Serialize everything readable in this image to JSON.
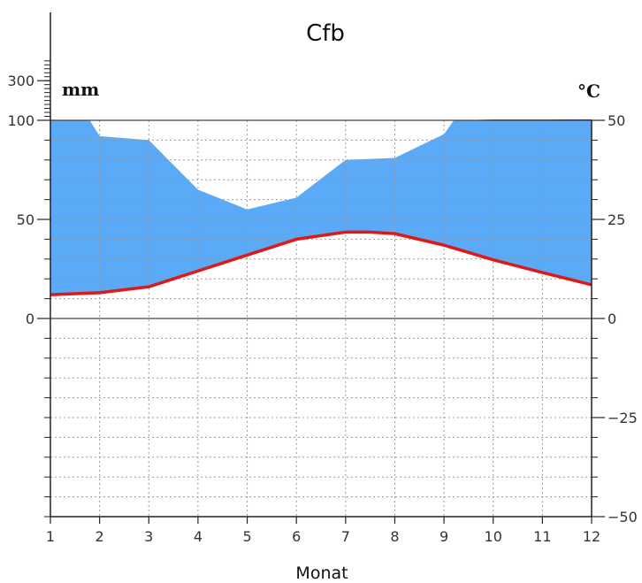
{
  "chart_data": {
    "type": "area",
    "title": "Cfb",
    "xlabel": "Monat",
    "left_unit": "mm",
    "right_unit": "°C",
    "x": [
      1,
      2,
      3,
      4,
      5,
      6,
      7,
      8,
      9,
      10,
      11,
      12
    ],
    "xtick_labels": [
      "1",
      "2",
      "3",
      "4",
      "5",
      "6",
      "7",
      "8",
      "9",
      "10",
      "11",
      "12"
    ],
    "left_ticks": [
      {
        "value": 0,
        "label": "0"
      },
      {
        "value": 50,
        "label": "50"
      },
      {
        "value": 100,
        "label": "100"
      },
      {
        "value": 300,
        "label": "300"
      }
    ],
    "right_ticks": [
      {
        "value": 50,
        "label": "50"
      },
      {
        "value": 25,
        "label": "25"
      },
      {
        "value": 0,
        "label": "0"
      },
      {
        "value": -25,
        "label": "−25"
      },
      {
        "value": -50,
        "label": "−50"
      }
    ],
    "ylim_temperature": [
      -50,
      50
    ],
    "precipitation_break_mm": 100,
    "precipitation_scale_above_break_mm_per_degree": 20,
    "series": [
      {
        "kind": "precipitation",
        "x": [
          1,
          1.8,
          2,
          3,
          4,
          5,
          6,
          7,
          8,
          9,
          9.2,
          10,
          11,
          12
        ],
        "values": [
          103,
          100,
          92,
          90,
          65,
          55,
          61,
          80,
          81,
          93,
          100,
          104,
          104,
          105
        ]
      },
      {
        "kind": "temperature",
        "x": [
          1,
          2,
          3,
          4,
          5,
          6,
          7,
          7.5,
          8,
          9,
          10,
          11,
          12
        ],
        "values": [
          6,
          6.5,
          8,
          12,
          16,
          20,
          21.8,
          21.8,
          21.4,
          18.5,
          14.8,
          11.6,
          8.5
        ]
      }
    ],
    "colors": {
      "humid": "#5aaaf8",
      "perhumid": "#0a14e0",
      "temperature": "#e01818",
      "grid": "#999999",
      "axis": "#222222"
    },
    "grid": true
  }
}
